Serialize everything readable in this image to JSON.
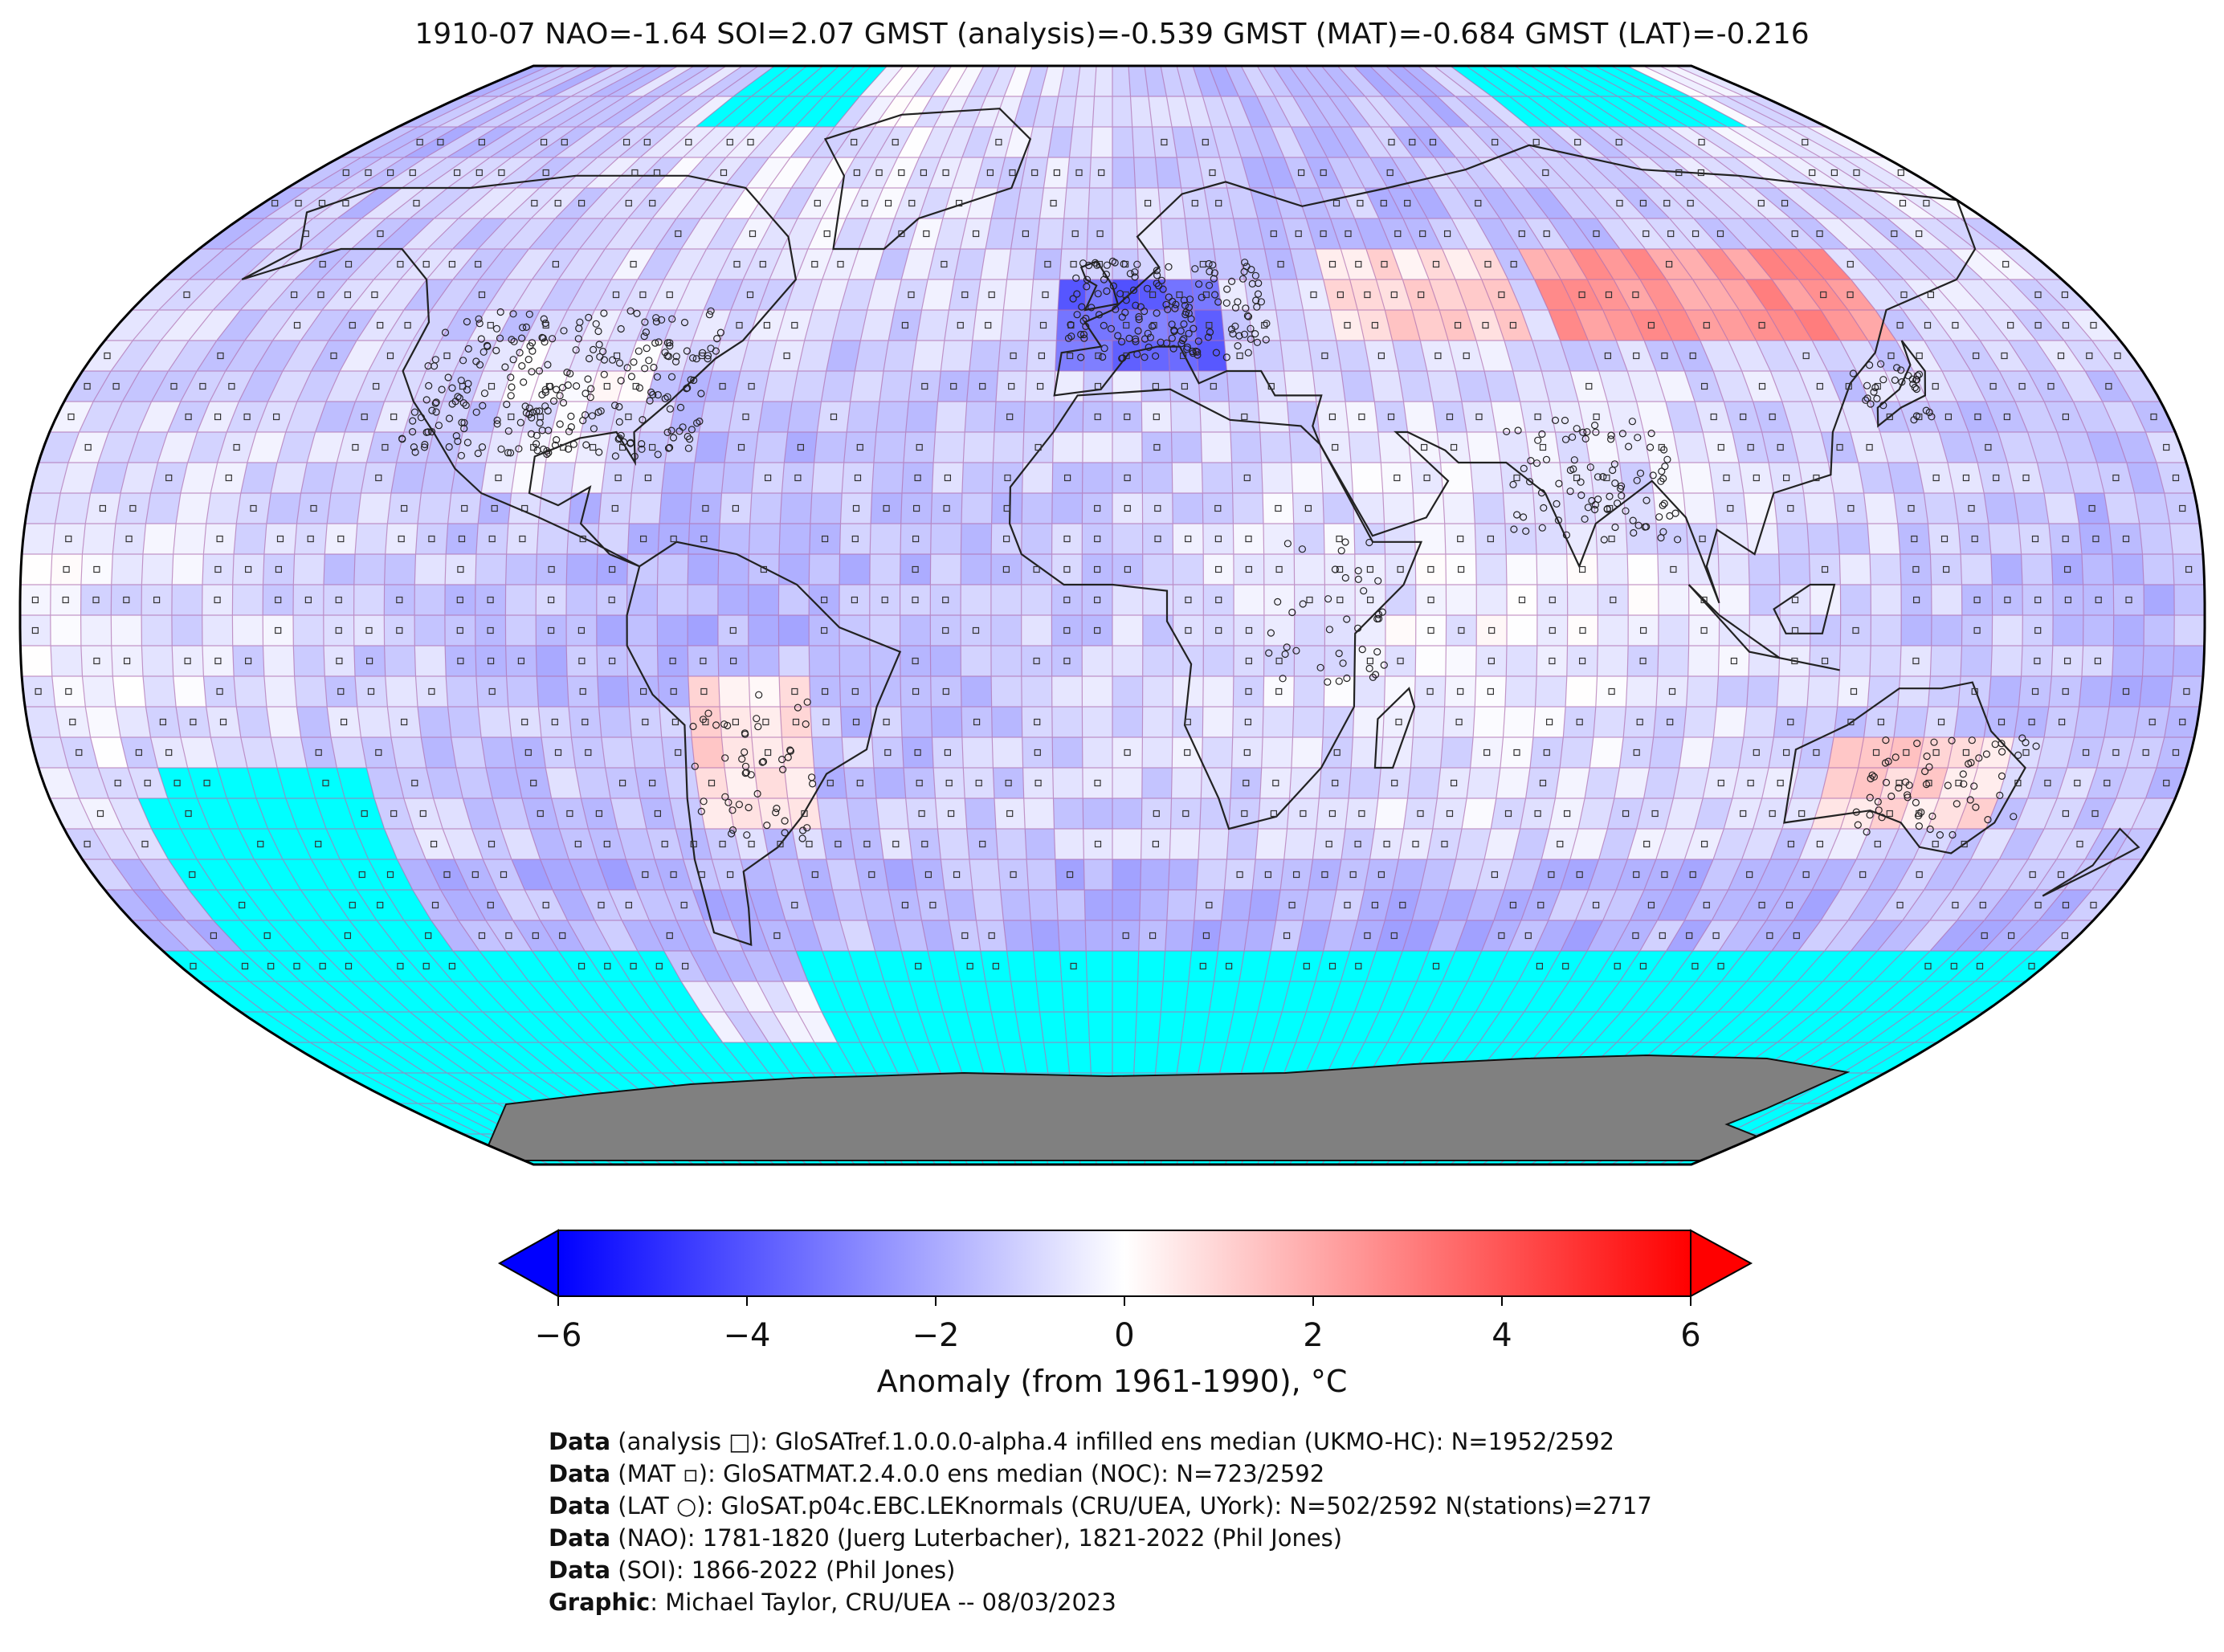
{
  "title": "1910-07 NAO=-1.64 SOI=2.07 GMST (analysis)=-0.539 GMST (MAT)=-0.684 GMST (LAT)=-0.216",
  "colorbar": {
    "label": "Anomaly (from 1961-1990), °C",
    "ticks": [
      "−6",
      "−4",
      "−2",
      "0",
      "2",
      "4",
      "6"
    ],
    "range": [
      -6,
      6
    ],
    "colors": {
      "min": "#0000ff",
      "mid": "#ffffff",
      "max": "#ff0000"
    }
  },
  "map": {
    "projection": "Robinson",
    "ocean_missing_color": "#00ffff",
    "antarctica_color": "#808080",
    "grid_color": "#b070b0"
  },
  "credits": [
    {
      "bold": "Data",
      "text": " (analysis □): GloSATref.1.0.0.0-alpha.4 infilled ens median (UKMO-HC): N=1952/2592"
    },
    {
      "bold": "Data",
      "text": " (MAT ▫): GloSATMAT.2.4.0.0 ens median (NOC): N=723/2592"
    },
    {
      "bold": "Data",
      "text": " (LAT ○): GloSAT.p04c.EBC.LEKnormals (CRU/UEA, UYork): N=502/2592 N(stations)=2717"
    },
    {
      "bold": "Data",
      "text": " (NAO): 1781-1820 (Juerg Luterbacher), 1821-2022 (Phil Jones)"
    },
    {
      "bold": "Data",
      "text": " (SOI): 1866-2022 (Phil Jones)"
    },
    {
      "bold": "Graphic",
      "text": ": Michael Taylor, CRU/UEA -- 08/03/2023"
    }
  ]
}
